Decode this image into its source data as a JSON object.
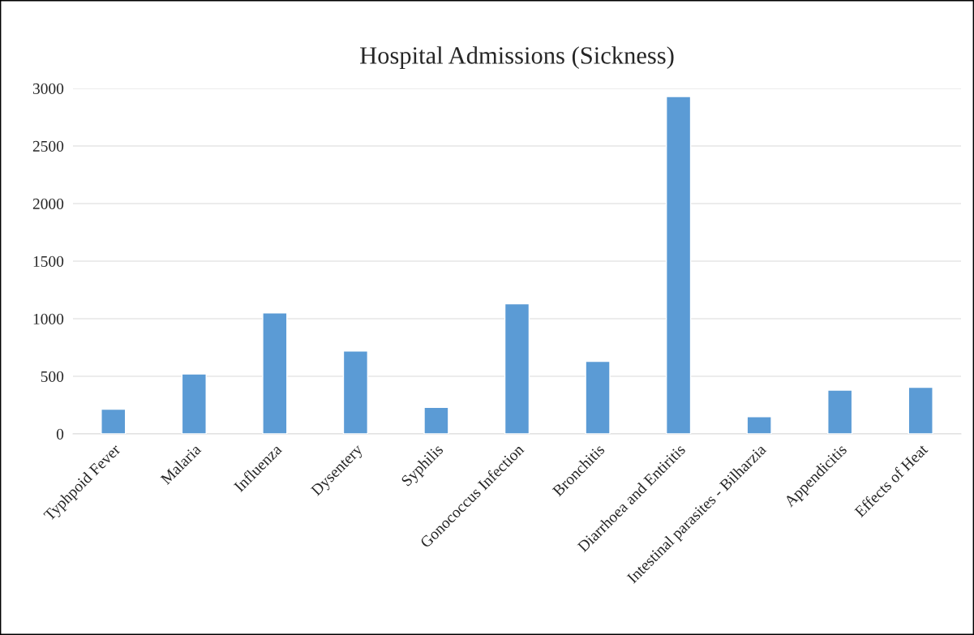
{
  "chart_data": {
    "type": "bar",
    "title": "Hospital Admissions (Sickness)",
    "categories": [
      "Typhpoid Fever",
      "Malaria",
      "Influenza",
      "Dysentery",
      "Syphilis",
      "Gonococcus Infection",
      "Bronchitis",
      "Diarrhoea and Entiritis",
      "Intestinal parasites - Bilharzia",
      "Appendicitis",
      "Effects of Heat"
    ],
    "values": [
      215,
      520,
      1050,
      720,
      230,
      1130,
      630,
      2930,
      150,
      380,
      405
    ],
    "color": "#5b9bd5",
    "ylim": [
      0,
      3000
    ],
    "yticks": [
      0,
      500,
      1000,
      1500,
      2000,
      2500,
      3000
    ],
    "grid": "y",
    "legend": false
  }
}
